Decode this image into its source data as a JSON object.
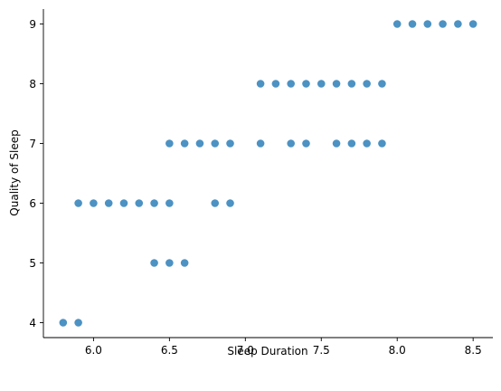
{
  "chart_data": {
    "type": "scatter",
    "title": "",
    "xlabel": "Sleep Duration",
    "ylabel": "Quality of Sleep",
    "xlim": [
      5.67,
      8.63
    ],
    "ylim": [
      3.75,
      9.25
    ],
    "xticks": [
      "6.0",
      "6.5",
      "7.0",
      "7.5",
      "8.0",
      "8.5"
    ],
    "yticks": [
      "4",
      "5",
      "6",
      "7",
      "8",
      "9"
    ],
    "grid": false,
    "legend": "none",
    "marker_color": "#1f77b4",
    "marker_alpha": 0.8,
    "spines": [
      "left",
      "bottom"
    ],
    "points": [
      {
        "x": 5.8,
        "y": 4
      },
      {
        "x": 5.9,
        "y": 4
      },
      {
        "x": 6.4,
        "y": 5
      },
      {
        "x": 6.5,
        "y": 5
      },
      {
        "x": 6.6,
        "y": 5
      },
      {
        "x": 5.9,
        "y": 6
      },
      {
        "x": 6.0,
        "y": 6
      },
      {
        "x": 6.1,
        "y": 6
      },
      {
        "x": 6.2,
        "y": 6
      },
      {
        "x": 6.3,
        "y": 6
      },
      {
        "x": 6.4,
        "y": 6
      },
      {
        "x": 6.5,
        "y": 6
      },
      {
        "x": 6.8,
        "y": 6
      },
      {
        "x": 6.9,
        "y": 6
      },
      {
        "x": 6.5,
        "y": 7
      },
      {
        "x": 6.6,
        "y": 7
      },
      {
        "x": 6.7,
        "y": 7
      },
      {
        "x": 6.8,
        "y": 7
      },
      {
        "x": 6.9,
        "y": 7
      },
      {
        "x": 7.1,
        "y": 7
      },
      {
        "x": 7.3,
        "y": 7
      },
      {
        "x": 7.4,
        "y": 7
      },
      {
        "x": 7.6,
        "y": 7
      },
      {
        "x": 7.7,
        "y": 7
      },
      {
        "x": 7.8,
        "y": 7
      },
      {
        "x": 7.9,
        "y": 7
      },
      {
        "x": 7.1,
        "y": 8
      },
      {
        "x": 7.2,
        "y": 8
      },
      {
        "x": 7.3,
        "y": 8
      },
      {
        "x": 7.4,
        "y": 8
      },
      {
        "x": 7.5,
        "y": 8
      },
      {
        "x": 7.6,
        "y": 8
      },
      {
        "x": 7.7,
        "y": 8
      },
      {
        "x": 7.8,
        "y": 8
      },
      {
        "x": 7.9,
        "y": 8
      },
      {
        "x": 8.0,
        "y": 9
      },
      {
        "x": 8.1,
        "y": 9
      },
      {
        "x": 8.2,
        "y": 9
      },
      {
        "x": 8.3,
        "y": 9
      },
      {
        "x": 8.4,
        "y": 9
      },
      {
        "x": 8.5,
        "y": 9
      }
    ]
  }
}
